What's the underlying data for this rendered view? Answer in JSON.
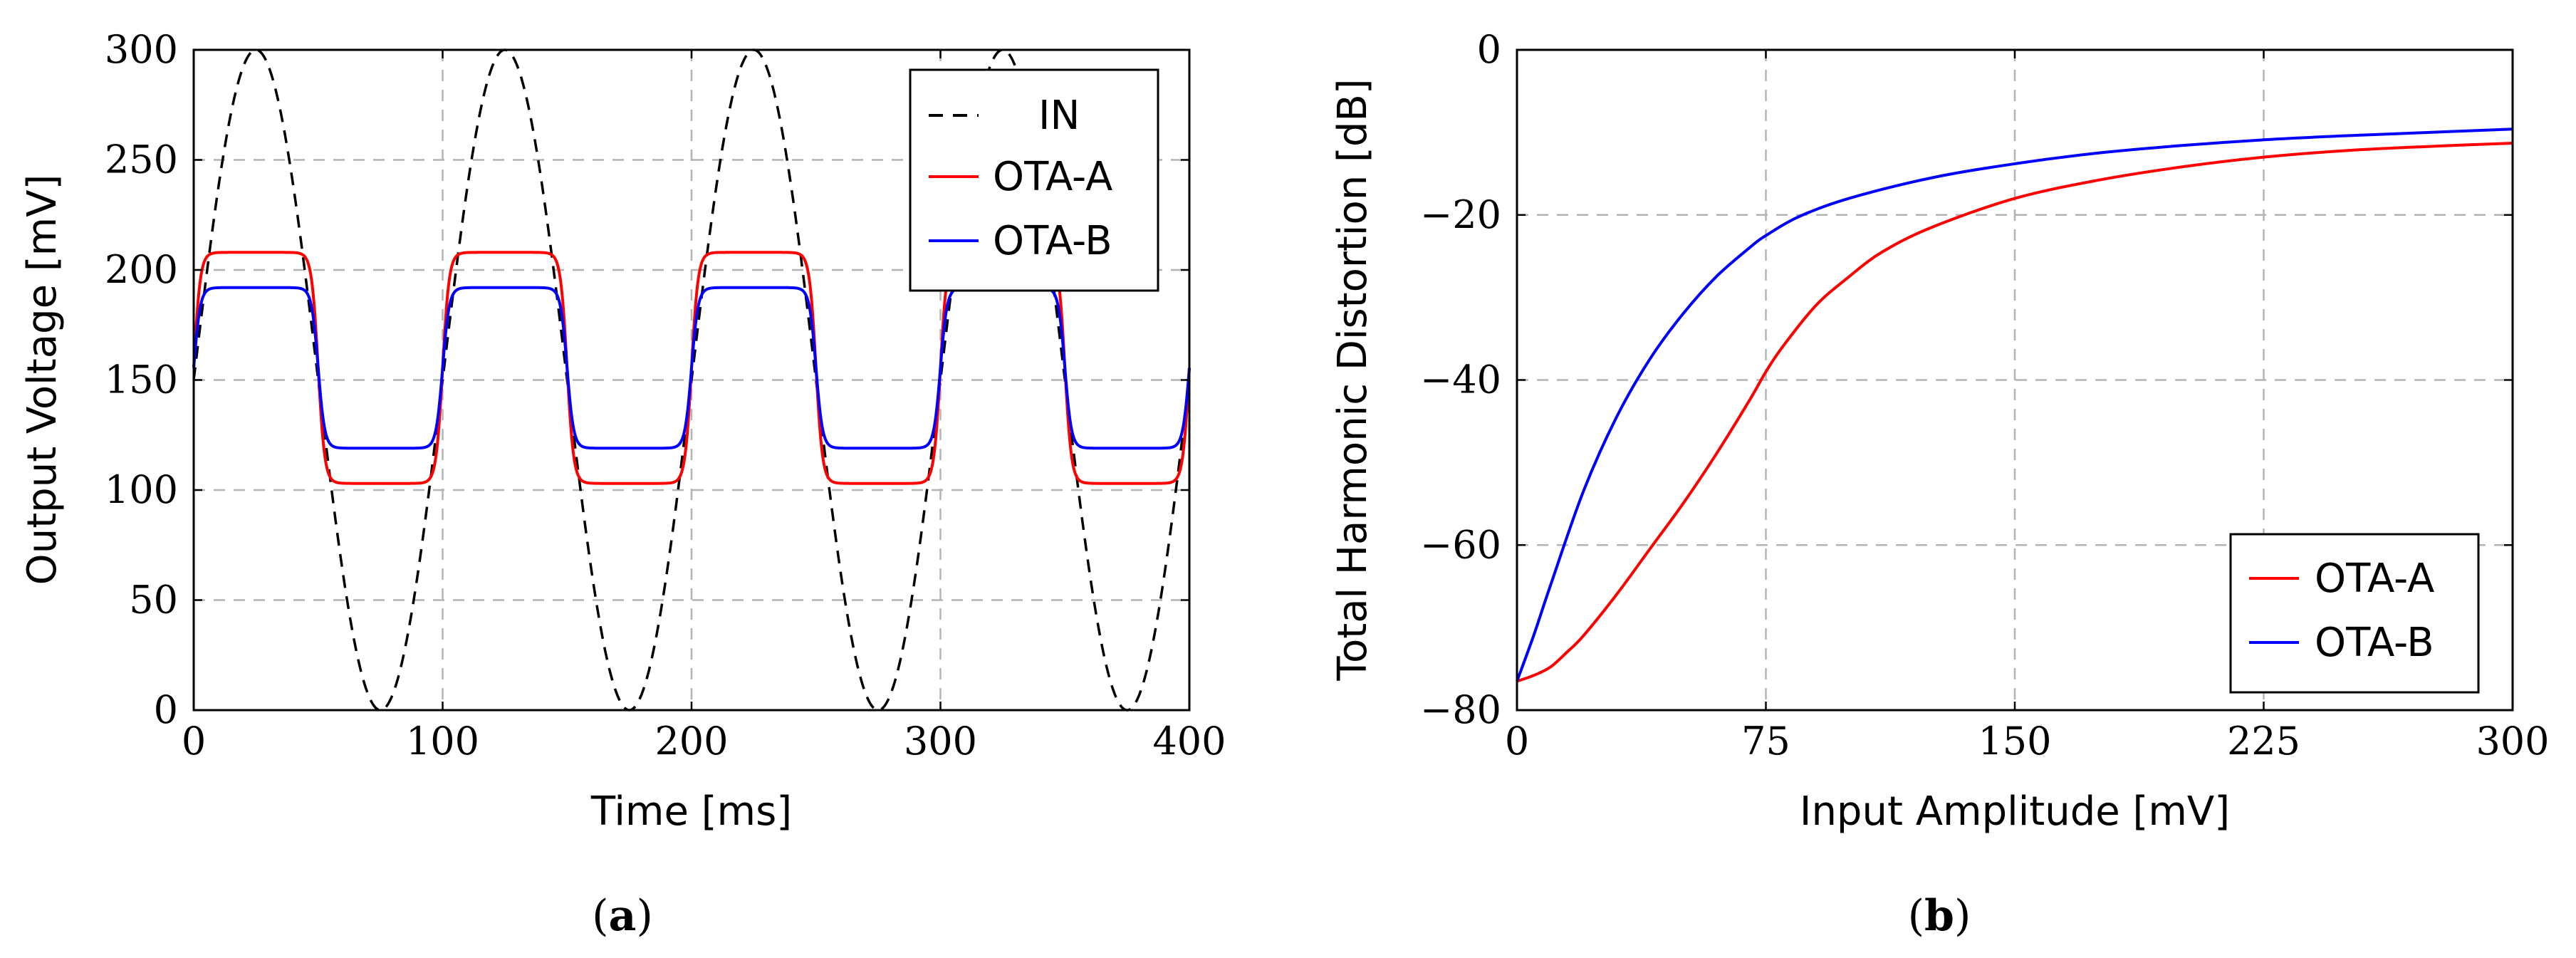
{
  "chart_data": [
    {
      "type": "line",
      "caption": "(a)",
      "caption_letter": "a",
      "xlabel": "Time [ms]",
      "ylabel": "Output Voltage [mV]",
      "xlim": [
        0,
        400
      ],
      "ylim": [
        0,
        300
      ],
      "xticks": [
        0,
        100,
        200,
        300,
        400
      ],
      "yticks": [
        0,
        50,
        100,
        150,
        200,
        250,
        300
      ],
      "grid": true,
      "legend_position": "top-right",
      "series": [
        {
          "name": "IN",
          "color": "#000000",
          "style": "dashed",
          "function": "sine",
          "offset": 150,
          "amplitude": 150,
          "period_ms": 100,
          "x": [
            0,
            12.5,
            25,
            37.5,
            50,
            62.5,
            75,
            87.5,
            100,
            112.5,
            125,
            137.5,
            150,
            162.5,
            175,
            187.5,
            200,
            212.5,
            225,
            237.5,
            250,
            262.5,
            275,
            287.5,
            300,
            312.5,
            325,
            337.5,
            350,
            362.5,
            375,
            387.5,
            400
          ],
          "y": [
            150,
            256,
            300,
            256,
            150,
            44,
            0,
            44,
            150,
            256,
            300,
            256,
            150,
            44,
            0,
            44,
            150,
            256,
            300,
            256,
            150,
            44,
            0,
            44,
            150,
            256,
            300,
            256,
            150,
            44,
            0,
            44,
            150
          ]
        },
        {
          "name": "OTA-A",
          "color": "#ff0000",
          "style": "solid",
          "function": "clipped-sine",
          "offset": 155.5,
          "high": 208,
          "low": 103,
          "period_ms": 100,
          "x": [
            0,
            5,
            10,
            25,
            40,
            45,
            50,
            55,
            60,
            75,
            90,
            95,
            100
          ],
          "y": [
            150,
            195,
            207,
            208,
            207,
            195,
            155,
            116,
            104,
            103,
            104,
            116,
            150
          ]
        },
        {
          "name": "OTA-B",
          "color": "#0000ff",
          "style": "solid",
          "function": "clipped-sine",
          "offset": 155.5,
          "high": 192,
          "low": 119,
          "period_ms": 100,
          "x": [
            0,
            5,
            10,
            25,
            40,
            45,
            50,
            55,
            60,
            75,
            90,
            95,
            100
          ],
          "y": [
            150,
            185,
            191,
            192,
            191,
            185,
            155,
            126,
            120,
            119,
            120,
            126,
            150
          ]
        }
      ]
    },
    {
      "type": "line",
      "caption": "(b)",
      "caption_letter": "b",
      "xlabel": "Input Amplitude [mV]",
      "ylabel": "Total Harmonic Distortion [dB]",
      "xlim": [
        0,
        300
      ],
      "ylim": [
        -80,
        0
      ],
      "xticks": [
        0,
        75,
        150,
        225,
        300
      ],
      "yticks": [
        -80,
        -60,
        -40,
        -20,
        0
      ],
      "ytick_labels": [
        "−80",
        "−60",
        "−40",
        "−20",
        "0"
      ],
      "grid": true,
      "legend_position": "bottom-right",
      "series": [
        {
          "name": "OTA-A",
          "color": "#ff0000",
          "x": [
            0,
            5,
            10,
            15,
            20,
            30,
            40,
            50,
            60,
            70,
            75,
            80,
            90,
            100,
            110,
            125,
            150,
            175,
            200,
            225,
            250,
            275,
            300
          ],
          "y": [
            -76.5,
            -75.8,
            -74.8,
            -73.0,
            -71.0,
            -66.0,
            -60.5,
            -55.0,
            -49.0,
            -42.5,
            -39.0,
            -36.0,
            -31.0,
            -27.5,
            -24.5,
            -21.5,
            -18.0,
            -15.8,
            -14.2,
            -13.0,
            -12.2,
            -11.7,
            -11.3
          ]
        },
        {
          "name": "OTA-B",
          "color": "#0000ff",
          "x": [
            0,
            5,
            10,
            20,
            30,
            40,
            50,
            60,
            70,
            75,
            85,
            100,
            125,
            150,
            175,
            200,
            225,
            250,
            275,
            300
          ],
          "y": [
            -76.5,
            -71.0,
            -65.0,
            -53.5,
            -44.5,
            -37.5,
            -32.0,
            -27.5,
            -24.0,
            -22.5,
            -20.2,
            -18.0,
            -15.5,
            -13.8,
            -12.5,
            -11.6,
            -10.9,
            -10.4,
            -10.0,
            -9.6
          ]
        }
      ]
    }
  ]
}
